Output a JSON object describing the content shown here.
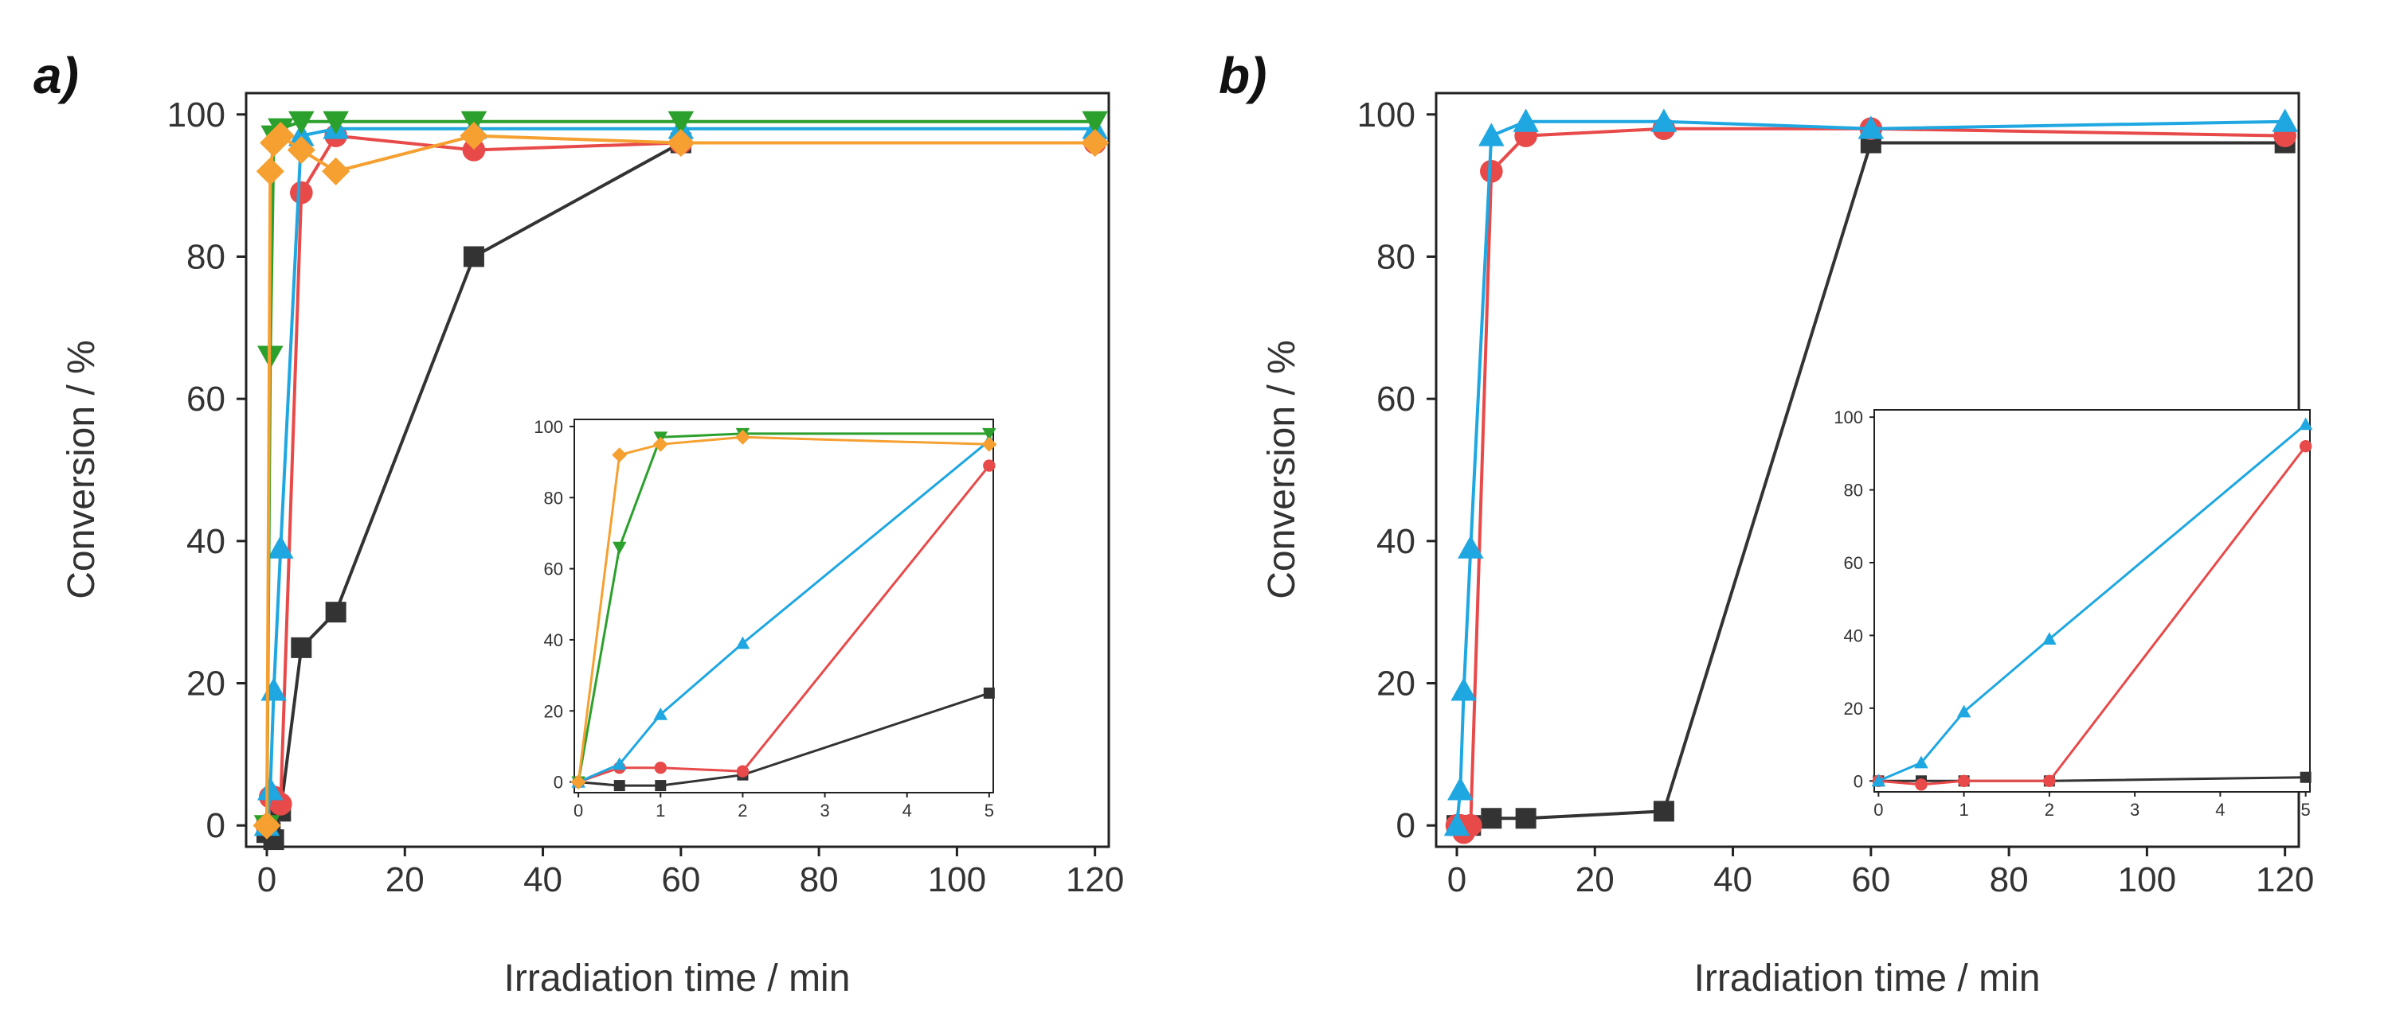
{
  "chart_data": [
    {
      "panel_label": "a)",
      "type": "line",
      "xlabel": "Irradiation time / min",
      "ylabel": "Conversion / %",
      "xlim": [
        -3,
        122
      ],
      "ylim": [
        -3,
        103
      ],
      "xticks": [
        0,
        20,
        40,
        60,
        80,
        100,
        120
      ],
      "yticks": [
        0,
        20,
        40,
        60,
        80,
        100
      ],
      "series": [
        {
          "name": "black-squares",
          "color": "#333333",
          "marker": "square",
          "x": [
            0,
            0.5,
            1,
            2,
            5,
            10,
            30,
            60
          ],
          "y": [
            -1,
            -1,
            -2,
            2,
            25,
            30,
            80,
            96
          ]
        },
        {
          "name": "red-circles",
          "color": "#e84a4a",
          "marker": "circle",
          "x": [
            0,
            0.5,
            1,
            2,
            5,
            10,
            30,
            60,
            120
          ],
          "y": [
            0,
            4,
            4,
            3,
            89,
            97,
            95,
            96,
            96
          ]
        },
        {
          "name": "blue-triangles",
          "color": "#1ea7e1",
          "marker": "triangle-up",
          "x": [
            0,
            0.5,
            1,
            2,
            5,
            10,
            30,
            60,
            120
          ],
          "y": [
            0,
            5,
            19,
            39,
            97,
            98,
            98,
            98,
            98
          ]
        },
        {
          "name": "green-triangles-down",
          "color": "#2ca02c",
          "marker": "triangle-down",
          "x": [
            0,
            0.5,
            1,
            2,
            5,
            10,
            30,
            60,
            120
          ],
          "y": [
            0,
            66,
            97,
            98,
            99,
            99,
            99,
            99,
            99
          ]
        },
        {
          "name": "orange-diamonds",
          "color": "#f5a030",
          "marker": "diamond",
          "x": [
            0,
            0.5,
            1,
            2,
            5,
            10,
            30,
            60,
            120
          ],
          "y": [
            0,
            92,
            96,
            97,
            95,
            92,
            97,
            96,
            96
          ]
        }
      ],
      "inset": {
        "xlim": [
          -0.05,
          5.05
        ],
        "ylim": [
          -3,
          102
        ],
        "xticks": [
          0,
          1,
          2,
          3,
          4,
          5
        ],
        "yticks": [
          0,
          20,
          40,
          60,
          80,
          100
        ],
        "series": [
          {
            "name": "black-squares",
            "color": "#333333",
            "marker": "square",
            "x": [
              0,
              0.5,
              1,
              2,
              5
            ],
            "y": [
              0,
              -1,
              -1,
              2,
              25
            ]
          },
          {
            "name": "red-circles",
            "color": "#e84a4a",
            "marker": "circle",
            "x": [
              0,
              0.5,
              1,
              2,
              5
            ],
            "y": [
              0,
              4,
              4,
              3,
              89
            ]
          },
          {
            "name": "blue-triangles",
            "color": "#1ea7e1",
            "marker": "triangle-up",
            "x": [
              0,
              0.5,
              1,
              2,
              5
            ],
            "y": [
              0,
              5,
              19,
              39,
              96
            ]
          },
          {
            "name": "green-triangles-down",
            "color": "#2ca02c",
            "marker": "triangle-down",
            "x": [
              0,
              0.5,
              1,
              2,
              5
            ],
            "y": [
              0,
              66,
              97,
              98,
              98
            ]
          },
          {
            "name": "orange-diamonds",
            "color": "#f5a030",
            "marker": "diamond",
            "x": [
              0,
              0.5,
              1,
              2,
              5
            ],
            "y": [
              0,
              92,
              95,
              97,
              95
            ]
          }
        ]
      }
    },
    {
      "panel_label": "b)",
      "type": "line",
      "xlabel": "Irradiation time / min",
      "ylabel": "Conversion / %",
      "xlim": [
        -3,
        122
      ],
      "ylim": [
        -3,
        103
      ],
      "xticks": [
        0,
        20,
        40,
        60,
        80,
        100,
        120
      ],
      "yticks": [
        0,
        20,
        40,
        60,
        80,
        100
      ],
      "series": [
        {
          "name": "black-squares",
          "color": "#333333",
          "marker": "square",
          "x": [
            0,
            0.5,
            1,
            2,
            5,
            10,
            30,
            60,
            120
          ],
          "y": [
            0,
            0,
            0,
            0,
            1,
            1,
            2,
            96,
            96
          ]
        },
        {
          "name": "red-circles",
          "color": "#e84a4a",
          "marker": "circle",
          "x": [
            0,
            0.5,
            1,
            2,
            5,
            10,
            30,
            60,
            120
          ],
          "y": [
            0,
            0,
            -1,
            0,
            92,
            97,
            98,
            98,
            97
          ]
        },
        {
          "name": "blue-triangles",
          "color": "#1ea7e1",
          "marker": "triangle-up",
          "x": [
            0,
            0.5,
            1,
            2,
            5,
            10,
            30,
            60,
            120
          ],
          "y": [
            0,
            5,
            19,
            39,
            97,
            99,
            99,
            98,
            99
          ]
        }
      ],
      "inset": {
        "xlim": [
          -0.05,
          5.05
        ],
        "ylim": [
          -3,
          102
        ],
        "xticks": [
          0,
          1,
          2,
          3,
          4,
          5
        ],
        "yticks": [
          0,
          20,
          40,
          60,
          80,
          100
        ],
        "series": [
          {
            "name": "black-squares",
            "color": "#333333",
            "marker": "square",
            "x": [
              0,
              0.5,
              1,
              2,
              5
            ],
            "y": [
              0,
              0,
              0,
              0,
              1
            ]
          },
          {
            "name": "red-circles",
            "color": "#e84a4a",
            "marker": "circle",
            "x": [
              0,
              0.5,
              1,
              2,
              5
            ],
            "y": [
              0,
              -1,
              0,
              0,
              92
            ]
          },
          {
            "name": "blue-triangles",
            "color": "#1ea7e1",
            "marker": "triangle-up",
            "x": [
              0,
              0.5,
              1,
              2,
              5
            ],
            "y": [
              0,
              5,
              19,
              39,
              98
            ]
          }
        ]
      }
    }
  ]
}
